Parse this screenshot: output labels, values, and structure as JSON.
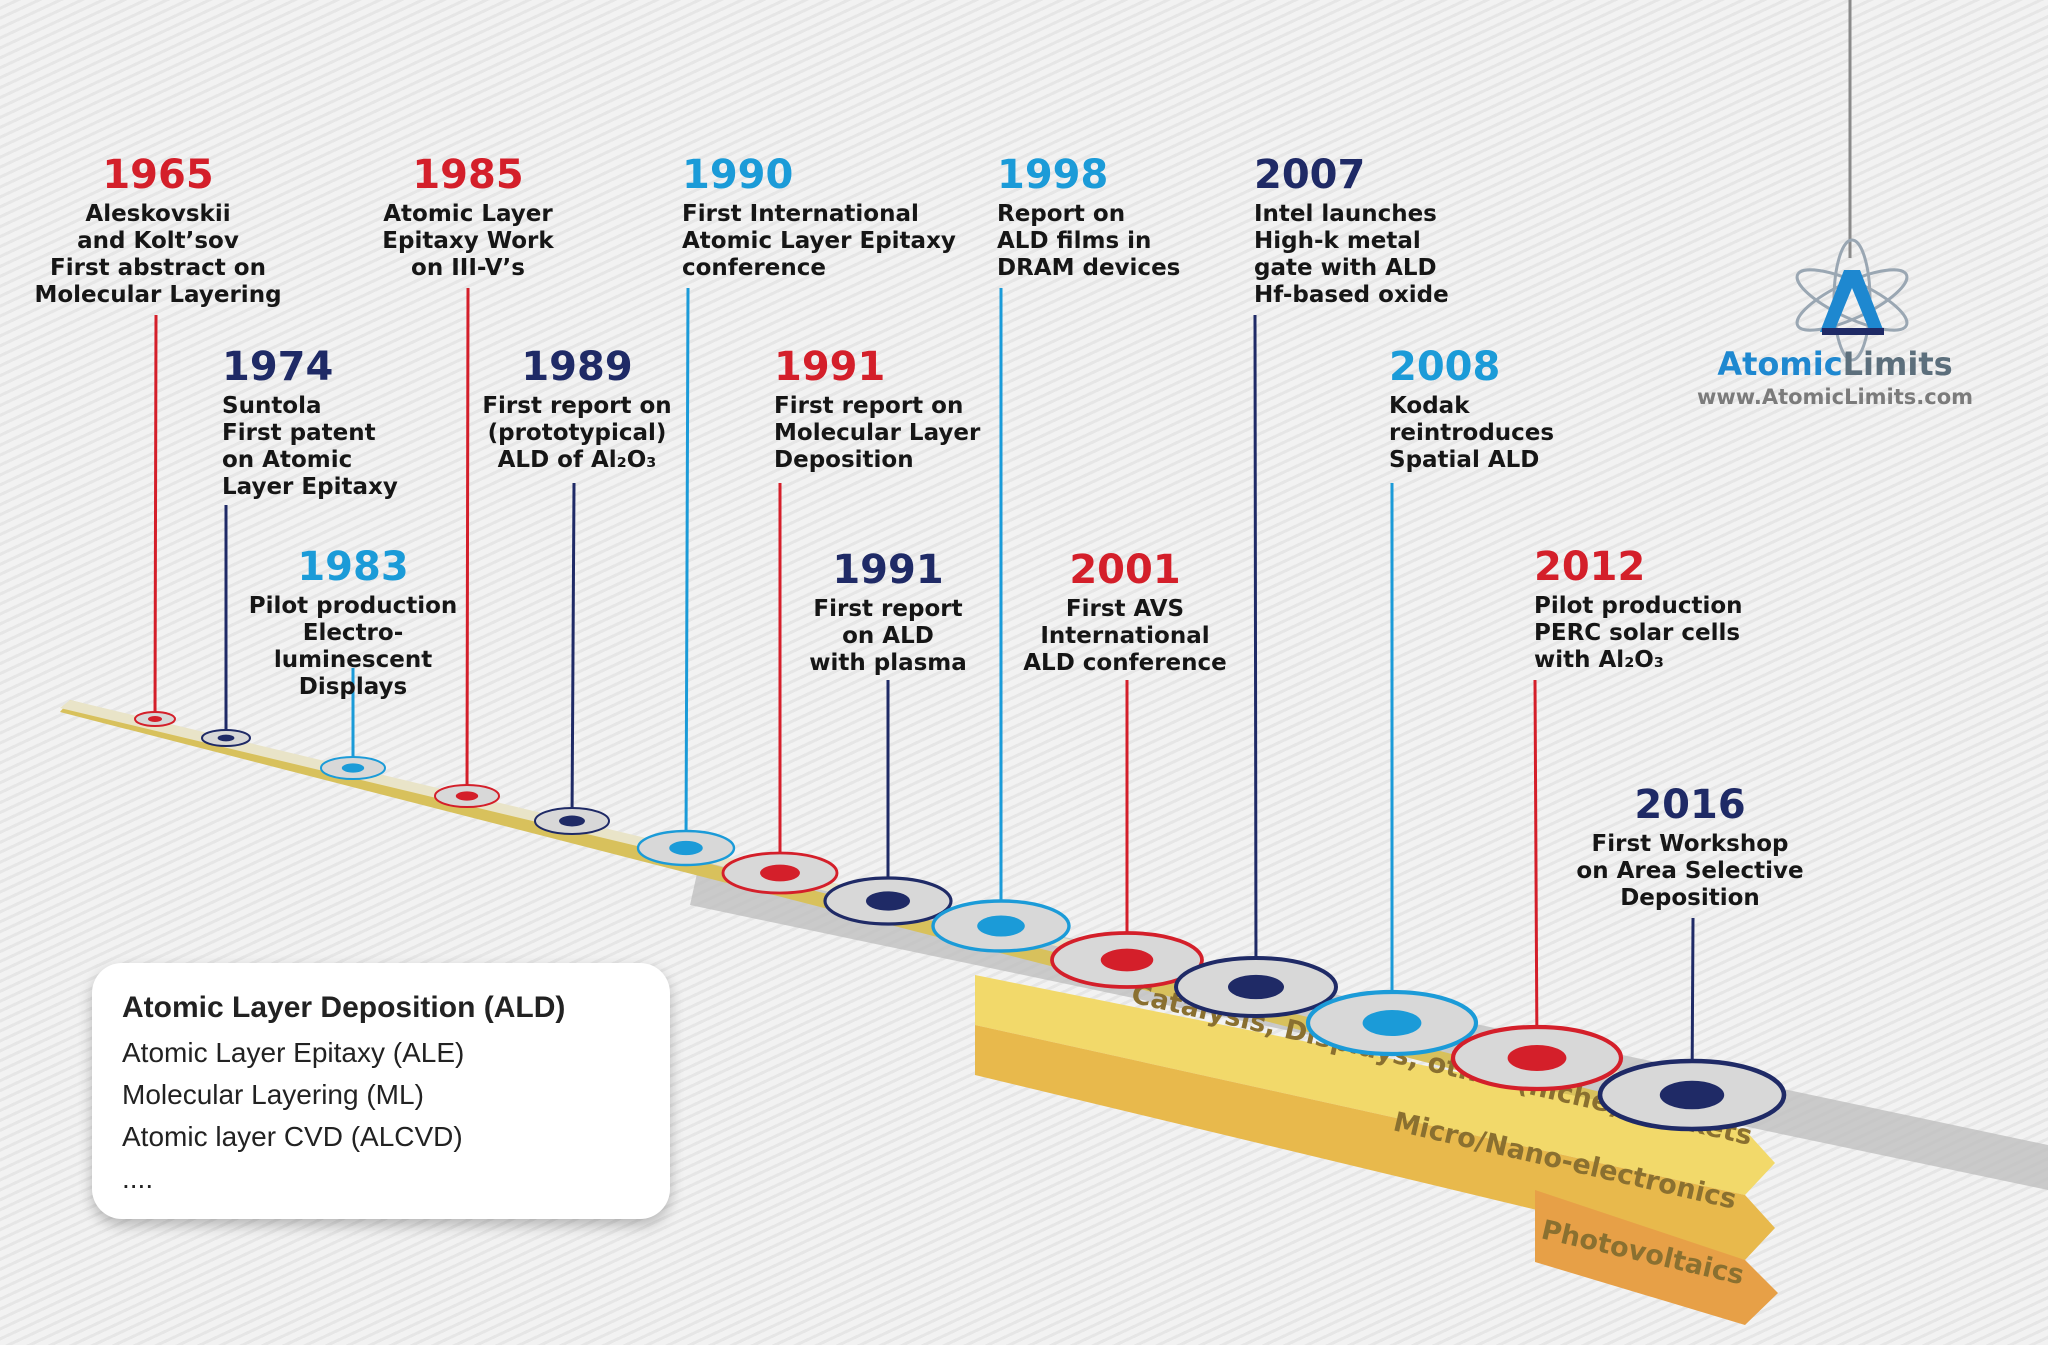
{
  "colors": {
    "red": "#d41f2a",
    "navy": "#1f2a66",
    "light_blue": "#1b9bd8",
    "gold": "#e5bd52"
  },
  "events": [
    {
      "year": "1965",
      "color": "red",
      "lines": [
        "Aleskovskii",
        "and Kolt’sov",
        "First abstract on",
        "Molecular Layering"
      ]
    },
    {
      "year": "1974",
      "color": "navy",
      "lines": [
        "Suntola",
        "First patent",
        "on Atomic",
        "Layer Epitaxy"
      ]
    },
    {
      "year": "1983",
      "color": "light_blue",
      "lines": [
        "Pilot production",
        "Electro-",
        "luminescent",
        "Displays"
      ]
    },
    {
      "year": "1985",
      "color": "red",
      "lines": [
        "Atomic Layer",
        "Epitaxy Work",
        "on III-V’s"
      ]
    },
    {
      "year": "1989",
      "color": "navy",
      "lines": [
        "First report on",
        "(prototypical)",
        "ALD of Al₂O₃"
      ]
    },
    {
      "year": "1990",
      "color": "light_blue",
      "lines": [
        "First International",
        "Atomic Layer Epitaxy",
        "conference"
      ]
    },
    {
      "year": "1991",
      "color": "red",
      "lines": [
        "First report on",
        "Molecular Layer",
        "Deposition"
      ]
    },
    {
      "year": "1991",
      "color": "navy",
      "lines": [
        "First report",
        "on ALD",
        "with plasma"
      ]
    },
    {
      "year": "1998",
      "color": "light_blue",
      "lines": [
        "Report on",
        "ALD films in",
        "DRAM devices"
      ]
    },
    {
      "year": "2001",
      "color": "red",
      "lines": [
        "First AVS",
        "International",
        "ALD conference"
      ]
    },
    {
      "year": "2007",
      "color": "navy",
      "lines": [
        "Intel launches",
        "High-k metal",
        "gate with ALD",
        "Hf-based oxide"
      ]
    },
    {
      "year": "2008",
      "color": "light_blue",
      "lines": [
        "Kodak",
        "reintroduces",
        "Spatial ALD"
      ]
    },
    {
      "year": "2012",
      "color": "red",
      "lines": [
        "Pilot production",
        "PERC solar cells",
        "with Al₂O₃"
      ]
    },
    {
      "year": "2016",
      "color": "navy",
      "lines": [
        "First Workshop",
        "on Area Selective",
        "Deposition"
      ]
    }
  ],
  "bands": [
    {
      "label": "Catalysis, Displays, other (niche) markets"
    },
    {
      "label": "Micro/Nano-electronics"
    },
    {
      "label": "Photovoltaics"
    }
  ],
  "logo": {
    "name_part1": "Atomic",
    "name_part2": "Limits",
    "url": "www.AtomicLimits.com"
  },
  "legend": {
    "title": "Atomic Layer Deposition (ALD)",
    "items": [
      "Atomic Layer Epitaxy (ALE)",
      "Molecular Layering (ML)",
      "Atomic layer CVD (ALCVD)",
      "...."
    ]
  }
}
